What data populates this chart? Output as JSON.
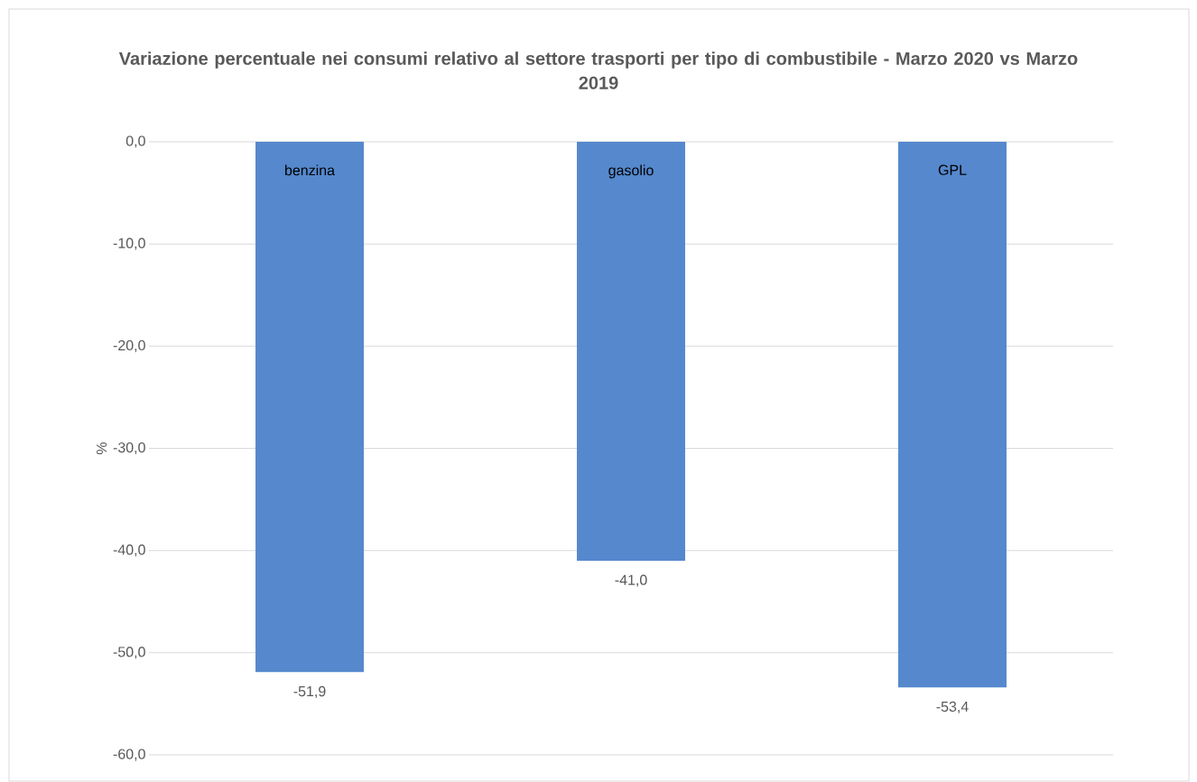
{
  "chart_data": {
    "type": "bar",
    "title": "Variazione percentuale nei consumi relativo al settore trasporti per tipo di combustibile  - Marzo 2020 vs Marzo 2019",
    "ylabel": "%",
    "categories": [
      "benzina",
      "gasolio",
      "GPL"
    ],
    "values": [
      -51.9,
      -41.0,
      -53.4
    ],
    "value_labels": [
      "-51,9",
      "-41,0",
      "-53,4"
    ],
    "color": "#5588cd",
    "ylim": [
      -60,
      0
    ],
    "yticks": [
      {
        "value": 0,
        "label": "0,0"
      },
      {
        "value": -10,
        "label": "-10,0"
      },
      {
        "value": -20,
        "label": "-20,0"
      },
      {
        "value": -30,
        "label": "-30,0"
      },
      {
        "value": -40,
        "label": "-40,0"
      },
      {
        "value": -50,
        "label": "-50,0"
      },
      {
        "value": -60,
        "label": "-60,0"
      }
    ],
    "grid": "y"
  }
}
